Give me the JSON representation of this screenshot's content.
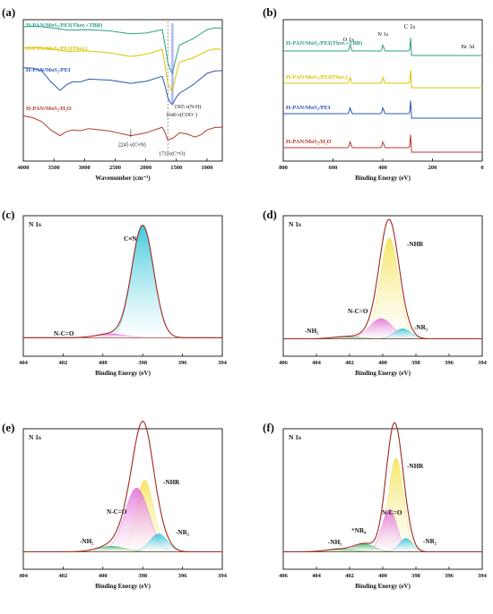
{
  "figure": {
    "panels": [
      {
        "id": "a",
        "letter": "(a)",
        "xlabel": "Wavenumber (cm⁻¹)",
        "ticks": [
          "4000",
          "3500",
          "3000",
          "2500",
          "2000",
          "1500",
          "1000"
        ],
        "annotations": [
          "2245 ν(C≡N)",
          "1731ν(C=O)",
          "1565 ν(N-H)",
          "1640 ν(COO⁻)"
        ]
      },
      {
        "id": "b",
        "letter": "(b)",
        "xlabel": "Binding Energy (eV)",
        "ticks": [
          "800",
          "600",
          "400",
          "200",
          "0"
        ],
        "annotations": [
          "O 1s",
          "N 1s",
          "C 1s",
          "Br 3d"
        ]
      },
      {
        "id": "c",
        "letter": "(c)",
        "title": "N 1s",
        "xlabel": "Binding Energy (eV)",
        "ticks": [
          "404",
          "402",
          "400",
          "398",
          "396",
          "394"
        ],
        "annotations": [
          "C≡N",
          "N-C=O"
        ]
      },
      {
        "id": "d",
        "letter": "(d)",
        "title": "N 1s",
        "xlabel": "Binding Energy (eV)",
        "ticks": [
          "406",
          "404",
          "402",
          "400",
          "398",
          "396",
          "394"
        ],
        "annotations": [
          "-NHR",
          "N-C=O",
          "-NH₂",
          "-NR₂"
        ]
      },
      {
        "id": "e",
        "letter": "(e)",
        "title": "N 1s",
        "xlabel": "Binding Energy (eV)",
        "ticks": [
          "404",
          "402",
          "400",
          "398",
          "396",
          "394"
        ],
        "annotations": [
          "-NHR",
          "N-C=O",
          "-NH₂",
          "-NR₂"
        ]
      },
      {
        "id": "f",
        "letter": "(f)",
        "title": "N 1s",
        "xlabel": "Binding Energy (eV)",
        "ticks": [
          "406",
          "404",
          "402",
          "400",
          "398",
          "396",
          "394"
        ],
        "annotations": [
          "-NHR",
          "N-C=O",
          "⁺NR₄",
          "-NH₂",
          "-NR₂"
        ]
      }
    ],
    "series_labels": {
      "tbb": "H-PAN/MoS₂/PEI(Ther.+TBB)",
      "ther": "H-PAN/MoS₂/PEI(Ther.)",
      "pei": "H-PAN/MoS₂/PEI",
      "h2o": "H-PAN/MoS₂/H₂O"
    },
    "colors": {
      "tbb": "#2e9e86",
      "ther": "#d8c400",
      "pei": "#2b57b0",
      "h2o": "#b53a2c",
      "envelope": "#a0281e",
      "cyan": "#22c1d6",
      "yellow": "#f3e24d",
      "magenta": "#e06ad8",
      "green": "#3fb36a",
      "highlight": "#9fa7ee"
    }
  },
  "chart_data": [
    {
      "type": "line",
      "panel": "a",
      "xlabel": "Wavenumber (cm⁻¹)",
      "xlim": [
        4000,
        750
      ],
      "ylabel": "",
      "series": [
        {
          "name": "H-PAN/MoS₂/PEI(Ther.+TBB)",
          "x": [
            4000,
            3500,
            3000,
            2245,
            1731,
            1640,
            1565,
            1450,
            1000,
            750
          ],
          "y": [
            0.95,
            0.94,
            0.93,
            0.9,
            0.93,
            0.7,
            0.62,
            0.82,
            0.93,
            0.94
          ]
        },
        {
          "name": "H-PAN/MoS₂/PEI(Ther.)",
          "x": [
            4000,
            3500,
            3000,
            2245,
            1731,
            1640,
            1565,
            1450,
            1000,
            750
          ],
          "y": [
            0.8,
            0.79,
            0.78,
            0.74,
            0.79,
            0.55,
            0.5,
            0.7,
            0.78,
            0.79
          ]
        },
        {
          "name": "H-PAN/MoS₂/PEI",
          "x": [
            4000,
            3700,
            3400,
            3200,
            2930,
            2245,
            1731,
            1640,
            1565,
            1450,
            1000,
            750
          ],
          "y": [
            0.66,
            0.64,
            0.5,
            0.56,
            0.58,
            0.55,
            0.6,
            0.45,
            0.4,
            0.48,
            0.62,
            0.64
          ]
        },
        {
          "name": "H-PAN/MoS₂/H₂O",
          "x": [
            4000,
            3700,
            3400,
            3200,
            2930,
            2245,
            1731,
            1640,
            1450,
            1200,
            1000,
            750
          ],
          "y": [
            0.32,
            0.28,
            0.18,
            0.22,
            0.23,
            0.18,
            0.24,
            0.15,
            0.2,
            0.17,
            0.22,
            0.24
          ]
        }
      ]
    },
    {
      "type": "line",
      "panel": "b",
      "xlabel": "Binding Energy (eV)",
      "xlim": [
        800,
        0
      ],
      "series": [
        {
          "name": "H-PAN/MoS₂/PEI(Ther.+TBB)",
          "peaks_eV": [
            531,
            399,
            285,
            70
          ]
        },
        {
          "name": "H-PAN/MoS₂/PEI(Ther.)",
          "peaks_eV": [
            531,
            399,
            285
          ]
        },
        {
          "name": "H-PAN/MoS₂/PEI",
          "peaks_eV": [
            531,
            399,
            285
          ]
        },
        {
          "name": "H-PAN/MoS₂/H₂O",
          "peaks_eV": [
            531,
            399,
            285
          ]
        }
      ]
    },
    {
      "type": "area",
      "panel": "c",
      "title": "N 1s",
      "xlabel": "Binding Energy (eV)",
      "xlim": [
        404,
        394
      ],
      "series": [
        {
          "name": "C≡N",
          "center": 398.0,
          "height": 1.0,
          "width": 0.55,
          "color": "cyan"
        },
        {
          "name": "N-C=O",
          "center": 399.6,
          "height": 0.035,
          "width": 0.7,
          "color": "magenta"
        }
      ],
      "baseline": 0.04
    },
    {
      "type": "area",
      "panel": "d",
      "title": "N 1s",
      "xlabel": "Binding Energy (eV)",
      "xlim": [
        406,
        394
      ],
      "series": [
        {
          "name": "-NHR",
          "center": 399.6,
          "height": 0.9,
          "width": 0.55,
          "color": "yellow"
        },
        {
          "name": "N-C=O",
          "center": 400.1,
          "height": 0.18,
          "width": 0.7,
          "color": "magenta"
        },
        {
          "name": "-NH₂",
          "center": 402.2,
          "height": 0.02,
          "width": 0.8,
          "color": "green"
        },
        {
          "name": "-NR₂",
          "center": 398.8,
          "height": 0.09,
          "width": 0.5,
          "color": "cyan"
        }
      ],
      "baseline": 0.03
    },
    {
      "type": "area",
      "panel": "e",
      "title": "N 1s",
      "xlabel": "Binding Energy (eV)",
      "xlim": [
        404,
        394
      ],
      "series": [
        {
          "name": "-NHR",
          "center": 397.9,
          "height": 0.64,
          "width": 0.45,
          "color": "yellow"
        },
        {
          "name": "N-C=O",
          "center": 398.3,
          "height": 0.57,
          "width": 0.6,
          "color": "magenta"
        },
        {
          "name": "-NH₂",
          "center": 399.6,
          "height": 0.05,
          "width": 0.7,
          "color": "green"
        },
        {
          "name": "-NR₂",
          "center": 397.2,
          "height": 0.16,
          "width": 0.45,
          "color": "cyan"
        }
      ],
      "baseline": 0.03
    },
    {
      "type": "area",
      "panel": "f",
      "title": "N 1s",
      "xlabel": "Binding Energy (eV)",
      "xlim": [
        406,
        394
      ],
      "series": [
        {
          "name": "-NHR",
          "center": 399.2,
          "height": 0.84,
          "width": 0.45,
          "color": "yellow"
        },
        {
          "name": "N-C=O",
          "center": 399.6,
          "height": 0.38,
          "width": 0.45,
          "color": "magenta"
        },
        {
          "name": "⁺NR₄",
          "center": 401.1,
          "height": 0.07,
          "width": 0.6,
          "color": "green"
        },
        {
          "name": "-NH₂",
          "center": 402.6,
          "height": 0.025,
          "width": 0.8,
          "color": "green"
        },
        {
          "name": "-NR₂",
          "center": 398.6,
          "height": 0.12,
          "width": 0.4,
          "color": "cyan"
        }
      ],
      "baseline": 0.03
    }
  ]
}
